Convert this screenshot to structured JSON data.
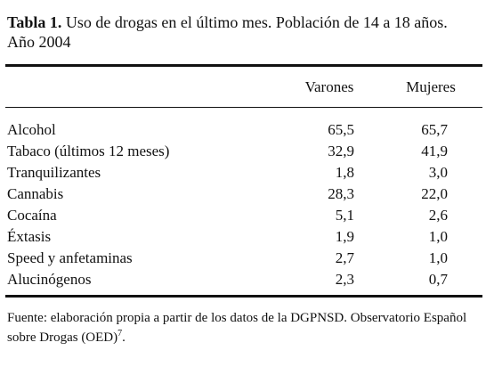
{
  "table": {
    "title_label": "Tabla 1.",
    "title_text": "Uso de drogas en el último mes. Población de 14 a 18 años. Año 2004",
    "columns": [
      "Varones",
      "Mujeres"
    ],
    "rows": [
      [
        "Alcohol",
        "65,5",
        "65,7"
      ],
      [
        "Tabaco (últimos 12 meses)",
        "32,9",
        "41,9"
      ],
      [
        "Tranquilizantes",
        "1,8",
        "3,0"
      ],
      [
        "Cannabis",
        "28,3",
        "22,0"
      ],
      [
        "Cocaína",
        "5,1",
        "2,6"
      ],
      [
        "Éxtasis",
        "1,9",
        "1,0"
      ],
      [
        "Speed y anfetaminas",
        "2,7",
        "1,0"
      ],
      [
        "Alucinógenos",
        "2,3",
        "0,7"
      ]
    ],
    "footnote": "Fuente: elaboración propia a partir de los datos de la DGPNSD. Observatorio Español sobre Drogas (OED)",
    "footnote_ref": "7",
    "footnote_end": "."
  }
}
